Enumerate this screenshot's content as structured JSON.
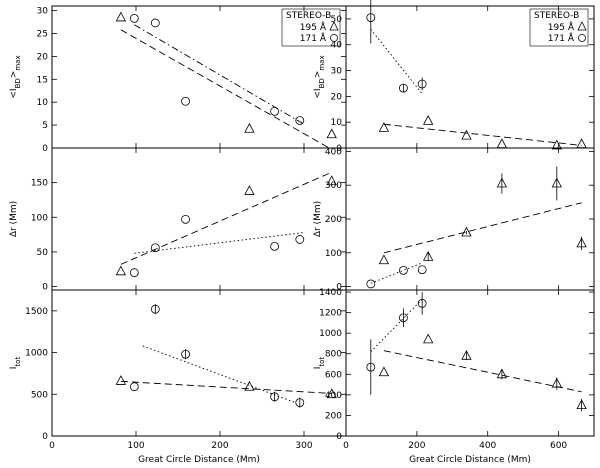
{
  "chart_data": [
    {
      "type": "scatter",
      "id": "L1",
      "ylabel": "<I_BD>_max",
      "xlabel": "",
      "xlim": [
        0,
        350
      ],
      "ylim": [
        0,
        31
      ],
      "xticks": [
        0,
        100,
        200,
        300
      ],
      "yticks": [
        0,
        5,
        10,
        15,
        20,
        25,
        30
      ],
      "show_xtick_labels": false,
      "legend": {
        "title": "STEREO-B",
        "entries": [
          "195 Å",
          "171 Å"
        ],
        "position": "top-right"
      },
      "series": [
        {
          "name": "195 Å",
          "marker": "triangle",
          "points": [
            [
              82,
              28.5
            ],
            [
              235,
              4.2
            ],
            [
              333,
              3.0
            ]
          ],
          "fit": {
            "style": "dashed",
            "x": [
              82,
              330
            ],
            "y": [
              25.8,
              0.0
            ]
          }
        },
        {
          "name": "171 Å",
          "marker": "circle",
          "points": [
            [
              98,
              28.3
            ],
            [
              123,
              27.3
            ],
            [
              159,
              10.2
            ],
            [
              265,
              8.0
            ],
            [
              295,
              6.0
            ]
          ],
          "fit": {
            "style": "dashdot",
            "x": [
              98,
              300
            ],
            "y": [
              26.9,
              5.2
            ]
          }
        }
      ]
    },
    {
      "type": "scatter",
      "id": "R1",
      "ylabel": "<I_BD>_max",
      "xlabel": "",
      "xlim": [
        0,
        700
      ],
      "ylim": [
        0,
        55
      ],
      "xticks": [
        0,
        200,
        400,
        600
      ],
      "yticks": [
        0,
        10,
        20,
        30,
        40,
        50
      ],
      "show_xtick_labels": false,
      "legend": {
        "title": "STEREO-B",
        "entries": [
          "195 Å",
          "171 Å"
        ],
        "position": "top-right"
      },
      "series": [
        {
          "name": "195 Å",
          "marker": "triangle",
          "points": [
            [
              107,
              7.8
            ],
            [
              232,
              10.5
            ],
            [
              340,
              4.8
            ],
            [
              440,
              1.5
            ],
            [
              595,
              1.0
            ],
            [
              665,
              1.5
            ]
          ],
          "fit": {
            "style": "dashed",
            "x": [
              107,
              665
            ],
            "y": [
              9.2,
              1.0
            ]
          }
        },
        {
          "name": "171 Å",
          "marker": "circle",
          "points": [
            [
              70,
              50.5
            ],
            [
              162,
              23.2
            ],
            [
              215,
              24.8
            ]
          ],
          "errors": [
            10.0,
            1.5,
            2.5
          ],
          "fit": {
            "style": "dotted",
            "x": [
              70,
              215
            ],
            "y": [
              46.0,
              21.0
            ]
          }
        }
      ]
    },
    {
      "type": "scatter",
      "id": "L2",
      "ylabel": "Δr (Mm)",
      "xlabel": "",
      "xlim": [
        0,
        350
      ],
      "ylim": [
        -5,
        200
      ],
      "xticks": [
        0,
        100,
        200,
        300
      ],
      "yticks": [
        0,
        50,
        100,
        150
      ],
      "show_xtick_labels": false,
      "series": [
        {
          "name": "195 Å",
          "marker": "triangle",
          "points": [
            [
              82,
              22
            ],
            [
              235,
              138
            ],
            [
              333,
              152
            ]
          ],
          "fit": {
            "style": "dashed",
            "x": [
              82,
              333
            ],
            "y": [
              32,
              165
            ]
          }
        },
        {
          "name": "171 Å",
          "marker": "circle",
          "points": [
            [
              98,
              20
            ],
            [
              123,
              56
            ],
            [
              159,
              97
            ],
            [
              265,
              58
            ],
            [
              295,
              68
            ]
          ],
          "fit": {
            "style": "dotted",
            "x": [
              98,
              300
            ],
            "y": [
              48,
              78
            ]
          }
        }
      ]
    },
    {
      "type": "scatter",
      "id": "R2",
      "ylabel": "Δr (Mm)",
      "xlabel": "",
      "xlim": [
        0,
        700
      ],
      "ylim": [
        -10,
        410
      ],
      "xticks": [
        0,
        200,
        400,
        600
      ],
      "yticks": [
        0,
        100,
        200,
        300,
        400
      ],
      "show_xtick_labels": false,
      "series": [
        {
          "name": "195 Å",
          "marker": "triangle",
          "points": [
            [
              107,
              78
            ],
            [
              232,
              88
            ],
            [
              340,
              160
            ],
            [
              440,
              305
            ],
            [
              595,
              305
            ],
            [
              665,
              128
            ]
          ],
          "errors": [
            0,
            12,
            5,
            30,
            50,
            20
          ],
          "fit": {
            "style": "dashed",
            "x": [
              107,
              665
            ],
            "y": [
              100,
              248
            ]
          }
        },
        {
          "name": "171 Å",
          "marker": "circle",
          "points": [
            [
              70,
              8
            ],
            [
              162,
              48
            ],
            [
              215,
              50
            ]
          ],
          "fit": {
            "style": "dotted",
            "x": [
              70,
              215
            ],
            "y": [
              10,
              70
            ]
          }
        }
      ]
    },
    {
      "type": "scatter",
      "id": "L3",
      "ylabel": "I_tot",
      "xlabel": "Great Circle Distance (Mm)",
      "xlim": [
        0,
        350
      ],
      "ylim": [
        0,
        1750
      ],
      "xticks": [
        0,
        100,
        200,
        300
      ],
      "yticks": [
        0,
        500,
        1000,
        1500
      ],
      "show_xtick_labels": true,
      "series": [
        {
          "name": "195 Å",
          "marker": "triangle",
          "points": [
            [
              82,
              660
            ],
            [
              235,
              590
            ],
            [
              333,
              500
            ]
          ],
          "fit": {
            "style": "dashed",
            "x": [
              82,
              333
            ],
            "y": [
              655,
              510
            ]
          }
        },
        {
          "name": "171 Å",
          "marker": "circle",
          "points": [
            [
              98,
              590
            ],
            [
              123,
              1520
            ],
            [
              159,
              980
            ],
            [
              265,
              470
            ],
            [
              295,
              400
            ]
          ],
          "errors": [
            0,
            60,
            60,
            60,
            60
          ],
          "fit": {
            "style": "dotted",
            "x": [
              108,
              290
            ],
            "y": [
              1080,
              400
            ]
          }
        }
      ]
    },
    {
      "type": "scatter",
      "id": "R3",
      "ylabel": "I_tot",
      "xlabel": "Great Circle Distance (Mm)",
      "xlim": [
        0,
        700
      ],
      "ylim": [
        0,
        1420
      ],
      "xticks": [
        0,
        200,
        400,
        600
      ],
      "yticks": [
        0,
        200,
        400,
        600,
        800,
        1000,
        1200,
        1400
      ],
      "show_xtick_labels": true,
      "series": [
        {
          "name": "195 Å",
          "marker": "triangle",
          "points": [
            [
              107,
              620
            ],
            [
              232,
              940
            ],
            [
              340,
              780
            ],
            [
              440,
              600
            ],
            [
              595,
              510
            ],
            [
              665,
              300
            ]
          ],
          "errors": [
            0,
            0,
            40,
            50,
            60,
            60
          ],
          "fit": {
            "style": "dashed",
            "x": [
              107,
              665
            ],
            "y": [
              830,
              430
            ]
          }
        },
        {
          "name": "171 Å",
          "marker": "circle",
          "points": [
            [
              70,
              670
            ],
            [
              162,
              1150
            ],
            [
              215,
              1290
            ]
          ],
          "errors": [
            270,
            90,
            110
          ],
          "fit": {
            "style": "dotted",
            "x": [
              70,
              215
            ],
            "y": [
              820,
              1330
            ]
          }
        }
      ]
    }
  ]
}
